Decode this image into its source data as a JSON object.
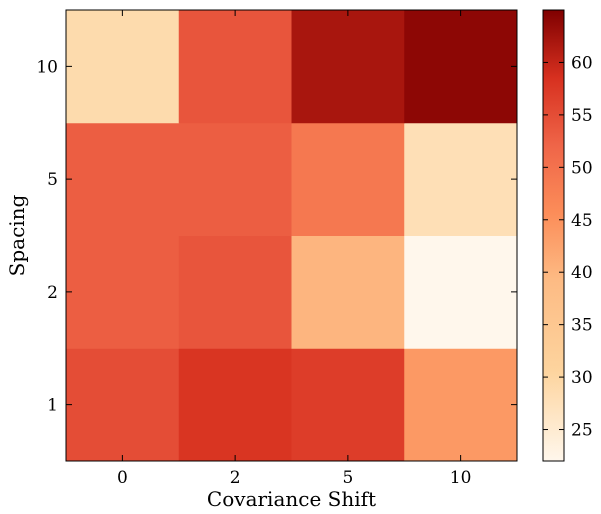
{
  "chart_data": {
    "type": "heatmap",
    "title": "",
    "xlabel": "Covariance Shift",
    "ylabel": "Spacing",
    "x_categories": [
      "0",
      "2",
      "5",
      "10"
    ],
    "y_categories": [
      "1",
      "2",
      "5",
      "10"
    ],
    "values": [
      [
        55,
        58,
        57,
        44
      ],
      [
        53,
        54,
        40,
        22
      ],
      [
        53,
        53,
        49,
        28
      ],
      [
        29,
        54,
        62,
        64
      ]
    ],
    "colorbar": {
      "min": 22,
      "max": 65,
      "ticks": [
        25,
        30,
        35,
        40,
        45,
        50,
        55,
        60
      ],
      "colormap": "OrRd"
    },
    "grid": false
  }
}
